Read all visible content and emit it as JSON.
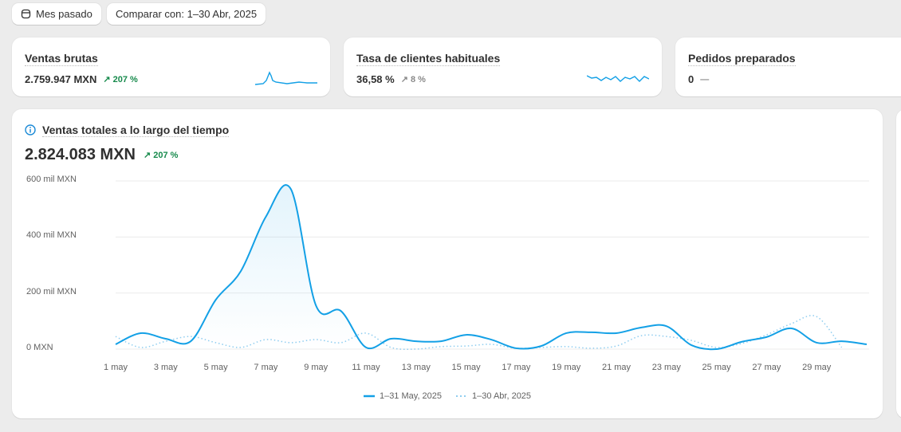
{
  "toolbar": {
    "date_range": "Mes pasado",
    "compare": "Comparar con: 1–30 Abr, 2025"
  },
  "kpis": [
    {
      "title": "Ventas brutas",
      "value": "2.759.947 MXN",
      "change": "207 %",
      "trend": "up"
    },
    {
      "title": "Tasa de clientes habituales",
      "value": "36,58 %",
      "change": "8 %",
      "trend": "up-neutral"
    },
    {
      "title": "Pedidos preparados",
      "value": "0",
      "change": "—"
    }
  ],
  "chart_data": {
    "type": "line",
    "title": "Ventas totales a lo largo del tiempo",
    "total": "2.824.083 MXN",
    "change": "207 %",
    "y_ticks": [
      "600 mil MXN",
      "400 mil MXN",
      "200 mil MXN",
      "0 MXN"
    ],
    "ylim": [
      0,
      600000
    ],
    "x_ticks": [
      "1 may",
      "3 may",
      "5 may",
      "7 may",
      "9 may",
      "11 may",
      "13 may",
      "15 may",
      "17 may",
      "19 may",
      "21 may",
      "23 may",
      "25 may",
      "27 may",
      "29 may"
    ],
    "grid": true,
    "legend_position": "bottom",
    "series": [
      {
        "name": "1–31 May, 2025",
        "style": "solid",
        "color": "#13a0e6",
        "values": [
          17000,
          57000,
          37000,
          28000,
          176000,
          278000,
          472000,
          571000,
          156000,
          136000,
          6000,
          37000,
          28000,
          28000,
          51000,
          34000,
          3000,
          11000,
          57000,
          60000,
          57000,
          77000,
          82000,
          14000,
          0,
          26000,
          43000,
          74000,
          23000,
          28000,
          17000
        ]
      },
      {
        "name": "1–30 Abr, 2025",
        "style": "dotted",
        "color": "#8fcdf0",
        "values": [
          45000,
          6000,
          28000,
          45000,
          23000,
          6000,
          34000,
          23000,
          34000,
          23000,
          57000,
          6000,
          0,
          9000,
          11000,
          17000,
          3000,
          6000,
          9000,
          3000,
          11000,
          48000,
          45000,
          31000,
          6000,
          20000,
          51000,
          91000,
          116000,
          6000
        ]
      }
    ]
  }
}
